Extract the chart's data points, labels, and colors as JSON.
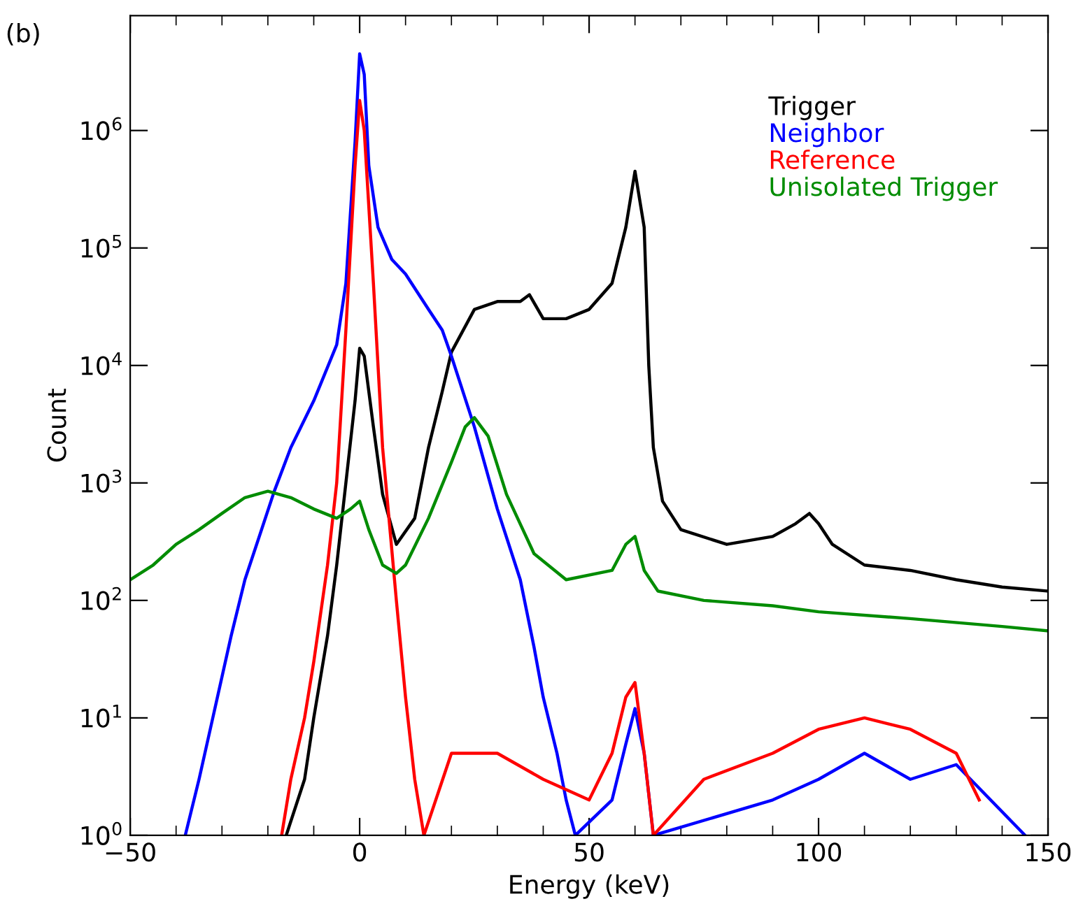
{
  "chart_data": {
    "type": "line",
    "xlabel": "Energy (keV)",
    "ylabel": "Count",
    "annotations": [
      "(b)"
    ],
    "xlim": [
      -50,
      150
    ],
    "xticks": [
      -50,
      0,
      50,
      100,
      150
    ],
    "ylim": [
      1,
      9500000
    ],
    "log": "y",
    "yticks": [
      {
        "value": 1,
        "label": "10$^{0}$"
      },
      {
        "value": 10,
        "label": "10$^{1}$"
      },
      {
        "value": 100,
        "label": "10$^{2}$"
      },
      {
        "value": 1000,
        "label": "10$^{3}$"
      },
      {
        "value": 10000,
        "label": "10$^{4}$"
      },
      {
        "value": 100000,
        "label": "10$^{5}$"
      },
      {
        "value": 1000000,
        "label": "10$^{6}$"
      }
    ],
    "grid": false,
    "legend": "top right",
    "series": [
      {
        "name": "Trigger",
        "color": "#000000",
        "x": [
          -16,
          -12,
          -10,
          -7,
          -5,
          -3,
          -1,
          0,
          1,
          3,
          5,
          8,
          12,
          15,
          18,
          20,
          25,
          30,
          35,
          37,
          40,
          45,
          50,
          55,
          58,
          60,
          62,
          63,
          64,
          66,
          70,
          80,
          90,
          95,
          98,
          100,
          103,
          110,
          120,
          130,
          140,
          150
        ],
        "values": [
          1,
          3,
          10,
          50,
          200,
          1000,
          5000,
          14000,
          12000,
          3000,
          800,
          300,
          500,
          2000,
          6000,
          13000,
          30000,
          35000,
          35000,
          40000,
          25000,
          25000,
          30000,
          50000,
          150000,
          450000,
          150000,
          10000,
          2000,
          700,
          400,
          300,
          350,
          450,
          550,
          450,
          300,
          200,
          180,
          150,
          130,
          120
        ]
      },
      {
        "name": "Neighbor",
        "color": "#0000ff",
        "x": [
          -38,
          -35,
          -32,
          -28,
          -25,
          -18.6,
          -15,
          -10,
          -5,
          -3,
          -1,
          0,
          1,
          2,
          4,
          7,
          10,
          15,
          18,
          20,
          25,
          30,
          35,
          38,
          40,
          43,
          45,
          47,
          55,
          58,
          60,
          62,
          64,
          90,
          100,
          110,
          120,
          130,
          145
        ],
        "values": [
          1,
          3,
          10,
          50,
          150,
          850,
          2000,
          5000,
          15000,
          50000,
          800000,
          4500000,
          3000000,
          500000,
          150000,
          80000,
          60000,
          30000,
          20000,
          12000,
          3000,
          600,
          150,
          40,
          15,
          5,
          2,
          1,
          2,
          6,
          12,
          5,
          1,
          2,
          3,
          5,
          3,
          4,
          1
        ]
      },
      {
        "name": "Reference",
        "color": "#ff0000",
        "x": [
          -17,
          -15,
          -12,
          -10,
          -7,
          -5,
          -3,
          -1,
          0,
          1,
          3,
          5,
          8,
          10,
          12,
          14,
          20,
          30,
          40,
          50,
          55,
          58,
          60,
          62,
          64,
          75,
          90,
          100,
          110,
          120,
          130,
          135
        ],
        "values": [
          1,
          3,
          10,
          30,
          200,
          1000,
          20000,
          500000,
          1800000,
          1000000,
          50000,
          2000,
          100,
          15,
          3,
          1,
          5,
          5,
          3,
          2,
          5,
          15,
          20,
          5,
          1,
          3,
          5,
          8,
          10,
          8,
          5,
          2
        ]
      },
      {
        "name": "Unisolated Trigger",
        "color": "#008c00",
        "x": [
          -50,
          -45,
          -40,
          -35,
          -30,
          -25,
          -20,
          -15,
          -10,
          -5,
          -2,
          0,
          2,
          5,
          8,
          10,
          15,
          20,
          23,
          25,
          28,
          32,
          38,
          45,
          55,
          58,
          60,
          62,
          65,
          75,
          90,
          100,
          120,
          140,
          150
        ],
        "values": [
          150,
          200,
          300,
          400,
          550,
          750,
          850,
          750,
          600,
          500,
          600,
          700,
          400,
          200,
          170,
          200,
          500,
          1500,
          3000,
          3600,
          2500,
          800,
          250,
          150,
          180,
          300,
          350,
          180,
          120,
          100,
          90,
          80,
          70,
          60,
          55
        ]
      }
    ]
  }
}
